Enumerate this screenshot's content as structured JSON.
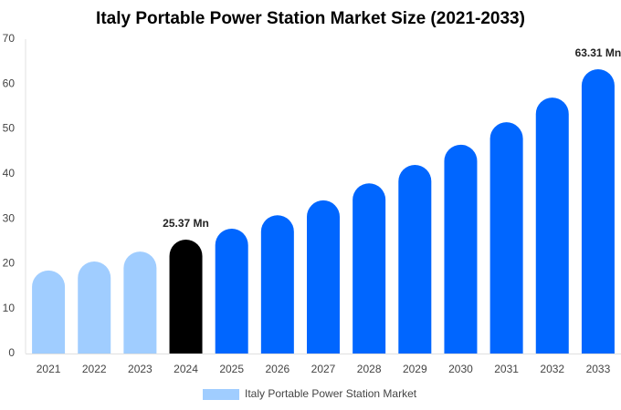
{
  "chart_data": {
    "type": "bar",
    "title": "Italy Portable Power Station Market Size (2021-2033)",
    "categories": [
      "2021",
      "2022",
      "2023",
      "2024",
      "2025",
      "2026",
      "2027",
      "2028",
      "2029",
      "2030",
      "2031",
      "2032",
      "2033"
    ],
    "series": [
      {
        "name": "Italy Portable Power Station Market",
        "color": "#a0cdff",
        "colors": [
          "#a0cdff",
          "#a0cdff",
          "#a0cdff",
          "#000000",
          "#0066ff",
          "#0066ff",
          "#0066ff",
          "#0066ff",
          "#0066ff",
          "#0066ff",
          "#0066ff",
          "#0066ff",
          "#0066ff"
        ],
        "values": [
          18.5,
          20.5,
          22.7,
          25.37,
          27.8,
          30.8,
          34.1,
          37.9,
          42.0,
          46.5,
          51.5,
          57.0,
          63.31
        ],
        "value_labels": [
          null,
          null,
          null,
          "25.37 Mn",
          null,
          null,
          null,
          null,
          null,
          null,
          null,
          null,
          "63.31 Mn"
        ]
      }
    ],
    "ylim": [
      0,
      70
    ],
    "yticks": [
      0,
      10,
      20,
      30,
      40,
      50,
      60,
      70
    ],
    "grid": false
  }
}
